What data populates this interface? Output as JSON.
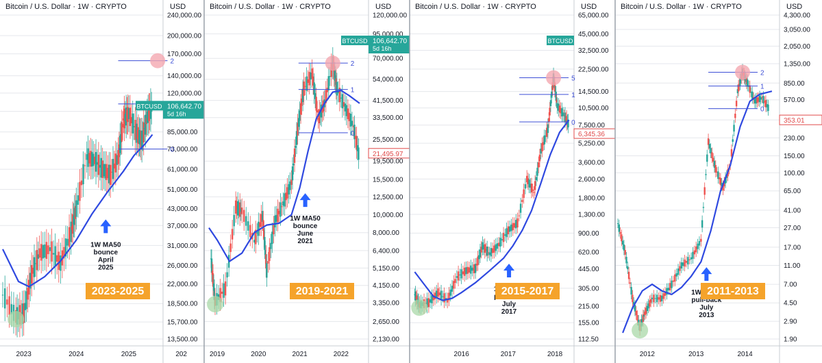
{
  "colors": {
    "ma": "#2f49e0",
    "up": "#26a69a",
    "down": "#ef5350",
    "fib": "#3d4fd6",
    "circle_red": "#f4a7b0",
    "circle_green": "#a9d8a8",
    "badge": "#f5a32b",
    "arrow": "#2962ff",
    "tag_green": "#26a69a",
    "tag_red": "#e04a4a",
    "grid": "#e5e7ec",
    "text": "#131722"
  },
  "chart_data": [
    {
      "type": "line",
      "title": "Bitcoin / U.S. Dollar · 1W · CRYPTO",
      "currency_label": "USD",
      "period_label": "2023-2025",
      "y_ticks": [
        "240,000.00",
        "200,000.00",
        "170,000.00",
        "140,000.00",
        "120,000.00",
        "102,000.00",
        "85,000.00",
        "73,000.00",
        "61,000.00",
        "51,000.00",
        "43,000.00",
        "37,000.00",
        "31,000.00",
        "26,000.00",
        "22,000.00",
        "18,500.00",
        "15,700.00",
        "13,500.00"
      ],
      "x_ticks": [
        "2023",
        "2024",
        "2025",
        "202"
      ],
      "price_tag": {
        "symbol": "BTCUSD",
        "value": "106,642.70",
        "sub": "5d 16h",
        "color": "#26a69a"
      },
      "fib_labels": [
        "2",
        "1",
        "0"
      ],
      "annotation": [
        "1W MA50",
        "bounce",
        "April",
        "2025"
      ],
      "series": [
        {
          "name": "price",
          "x": [
            2022.6,
            2022.85,
            2023.0,
            2023.15,
            2023.3,
            2023.5,
            2023.7,
            2023.9,
            2024.0,
            2024.2,
            2024.35,
            2024.5,
            2024.65,
            2024.8,
            2024.9,
            2025.0,
            2025.15,
            2025.25,
            2025.35,
            2025.45
          ],
          "y": [
            20000,
            16500,
            17000,
            24000,
            29000,
            30000,
            26500,
            35000,
            43000,
            68000,
            66000,
            61000,
            58000,
            68000,
            95000,
            100000,
            84000,
            79000,
            97000,
            106600
          ]
        },
        {
          "name": "1W MA50",
          "x": [
            2022.6,
            2022.9,
            2023.1,
            2023.4,
            2023.7,
            2024.0,
            2024.3,
            2024.6,
            2024.9,
            2025.1,
            2025.3,
            2025.45
          ],
          "y": [
            30000,
            22500,
            21500,
            23500,
            27000,
            32500,
            41000,
            50000,
            60000,
            69000,
            76000,
            83000
          ]
        }
      ]
    },
    {
      "type": "line",
      "title": "Bitcoin / U.S. Dollar · 1W · CRYPTO",
      "currency_label": "USD",
      "period_label": "2019-2021",
      "y_ticks": [
        "120,000.00",
        "95,000.00",
        "70,000.00",
        "54,000.00",
        "41,500.00",
        "33,500.00",
        "25,500.00",
        "19,500.00",
        "15,500.00",
        "12,500.00",
        "10,000.00",
        "8,000.00",
        "6,400.00",
        "5,150.00",
        "4,150.00",
        "3,350.00",
        "2,650.00",
        "2,130.00"
      ],
      "x_ticks": [
        "2019",
        "2020",
        "2021",
        "2022"
      ],
      "price_tag": {
        "symbol": "BTCUSD",
        "value": "106,642.70",
        "sub": "5d 16h",
        "color": "#26a69a"
      },
      "price_tag2": {
        "value": "21,495.97",
        "color": "#e04a4a"
      },
      "fib_labels": [
        "2",
        "1",
        "0"
      ],
      "annotation": [
        "1W MA50",
        "bounce",
        "June",
        "2021"
      ],
      "series": [
        {
          "name": "price",
          "x": [
            2018.85,
            2018.95,
            2019.2,
            2019.45,
            2019.6,
            2019.9,
            2020.1,
            2020.2,
            2020.4,
            2020.6,
            2020.8,
            2020.95,
            2021.1,
            2021.3,
            2021.45,
            2021.6,
            2021.8,
            2021.9,
            2022.1,
            2022.3,
            2022.45
          ],
          "y": [
            5800,
            3400,
            4000,
            11000,
            10500,
            7200,
            9800,
            5000,
            9200,
            11500,
            15000,
            29000,
            48000,
            58000,
            33000,
            40000,
            66000,
            48000,
            38000,
            30000,
            20000
          ]
        },
        {
          "name": "1W MA50",
          "x": [
            2018.8,
            2019.0,
            2019.3,
            2019.6,
            2019.9,
            2020.2,
            2020.5,
            2020.8,
            2021.0,
            2021.2,
            2021.4,
            2021.6,
            2021.8,
            2022.0,
            2022.2,
            2022.45
          ],
          "y": [
            8500,
            7300,
            5600,
            6200,
            8000,
            8800,
            9000,
            10000,
            14000,
            22000,
            33000,
            40000,
            46000,
            47000,
            44000,
            40000
          ]
        }
      ]
    },
    {
      "type": "line",
      "title": "Bitcoin / U.S. Dollar · 1W · CRYPTO",
      "currency_label": "USD",
      "period_label": "2015-2017",
      "y_ticks": [
        "65,000.00",
        "45,000.00",
        "32,500.00",
        "22,500.00",
        "14,500.00",
        "10,500.00",
        "7,500.00",
        "5,250.00",
        "3,600.00",
        "2,600.00",
        "1,800.00",
        "1,300.00",
        "900.00",
        "620.00",
        "445.00",
        "305.00",
        "215.00",
        "155.00",
        "112.50"
      ],
      "x_ticks": [
        "2016",
        "2017",
        "2018"
      ],
      "price_tag": {
        "symbol": "BTCUSD",
        "value": "",
        "sub": "",
        "color": "#26a69a"
      },
      "price_tag2": {
        "value": "6,345.36",
        "color": "#e04a4a"
      },
      "fib_labels": [
        "5",
        "1",
        "0"
      ],
      "annotation": [
        "1W MA50",
        "pull-back",
        "July",
        "2017"
      ],
      "series": [
        {
          "name": "price",
          "x": [
            2015.0,
            2015.1,
            2015.3,
            2015.5,
            2015.7,
            2015.9,
            2016.1,
            2016.3,
            2016.45,
            2016.6,
            2016.8,
            2017.0,
            2017.2,
            2017.4,
            2017.55,
            2017.7,
            2017.85,
            2017.97,
            2018.05,
            2018.2,
            2018.3
          ],
          "y": [
            270,
            220,
            230,
            280,
            240,
            380,
            430,
            450,
            700,
            600,
            720,
            950,
            1100,
            2600,
            2000,
            4500,
            7000,
            19000,
            11000,
            9000,
            7500
          ]
        },
        {
          "name": "1W MA50",
          "x": [
            2015.0,
            2015.2,
            2015.4,
            2015.6,
            2015.8,
            2016.0,
            2016.3,
            2016.6,
            2016.9,
            2017.1,
            2017.3,
            2017.5,
            2017.7,
            2017.9,
            2018.1,
            2018.3
          ],
          "y": [
            420,
            330,
            260,
            240,
            250,
            280,
            340,
            430,
            550,
            700,
            950,
            1400,
            2400,
            4200,
            6500,
            8300
          ]
        }
      ]
    },
    {
      "type": "line",
      "title": "Bitcoin / U.S. Dollar · 1W · CRYPTO",
      "currency_label": "USD",
      "period_label": "2011-2013",
      "y_ticks": [
        "4,300.00",
        "3,050.00",
        "2,050.00",
        "1,350.00",
        "850.00",
        "570.00",
        "353.01",
        "230.00",
        "150.00",
        "100.00",
        "65.00",
        "41.00",
        "27.00",
        "17.00",
        "11.00",
        "7.00",
        "4.50",
        "2.90",
        "1.90"
      ],
      "x_ticks": [
        "2012",
        "2013",
        "2014"
      ],
      "price_tag": {
        "symbol": "",
        "value": "",
        "sub": "",
        "color": "#26a69a"
      },
      "price_tag2": {
        "value": "353.01",
        "color": "#e04a4a"
      },
      "fib_labels": [
        "2",
        "1",
        "0"
      ],
      "annotation": [
        "1W MA50",
        "pull-back",
        "July",
        "2013"
      ],
      "series": [
        {
          "name": "price",
          "x": [
            2011.4,
            2011.55,
            2011.7,
            2011.85,
            2011.95,
            2012.1,
            2012.3,
            2012.5,
            2012.7,
            2012.9,
            2013.1,
            2013.25,
            2013.4,
            2013.55,
            2013.7,
            2013.85,
            2013.95,
            2014.05,
            2014.2,
            2014.35,
            2014.5
          ],
          "y": [
            30,
            15,
            5,
            2.5,
            3.5,
            5,
            5,
            7,
            11,
            13,
            20,
            210,
            110,
            70,
            120,
            700,
            1100,
            850,
            550,
            600,
            450
          ]
        },
        {
          "name": "1W MA50",
          "x": [
            2011.5,
            2011.7,
            2011.9,
            2012.1,
            2012.3,
            2012.5,
            2012.7,
            2012.9,
            2013.1,
            2013.3,
            2013.5,
            2013.7,
            2013.9,
            2014.1,
            2014.3,
            2014.55
          ],
          "y": [
            2.2,
            4,
            6,
            7,
            6,
            5.5,
            6.5,
            8.5,
            12,
            25,
            65,
            120,
            300,
            550,
            650,
            700
          ]
        }
      ]
    }
  ]
}
